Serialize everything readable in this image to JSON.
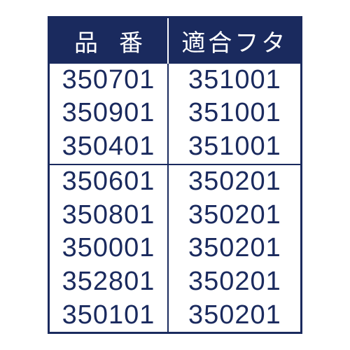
{
  "table": {
    "headers": [
      "品番",
      "適合フタ"
    ],
    "header_bg": "#1a2a5e",
    "header_fg": "#ffffff",
    "border_color": "#1a2a5e",
    "cell_fg": "#1a2a5e",
    "background": "#ffffff",
    "header_fontsize": 34,
    "cell_fontsize": 38,
    "groups": [
      {
        "rows": [
          [
            "350701",
            "351001"
          ],
          [
            "350901",
            "351001"
          ],
          [
            "350401",
            "351001"
          ]
        ]
      },
      {
        "rows": [
          [
            "350601",
            "350201"
          ],
          [
            "350801",
            "350201"
          ],
          [
            "350001",
            "350201"
          ],
          [
            "352801",
            "350201"
          ],
          [
            "350101",
            "350201"
          ]
        ]
      }
    ]
  }
}
